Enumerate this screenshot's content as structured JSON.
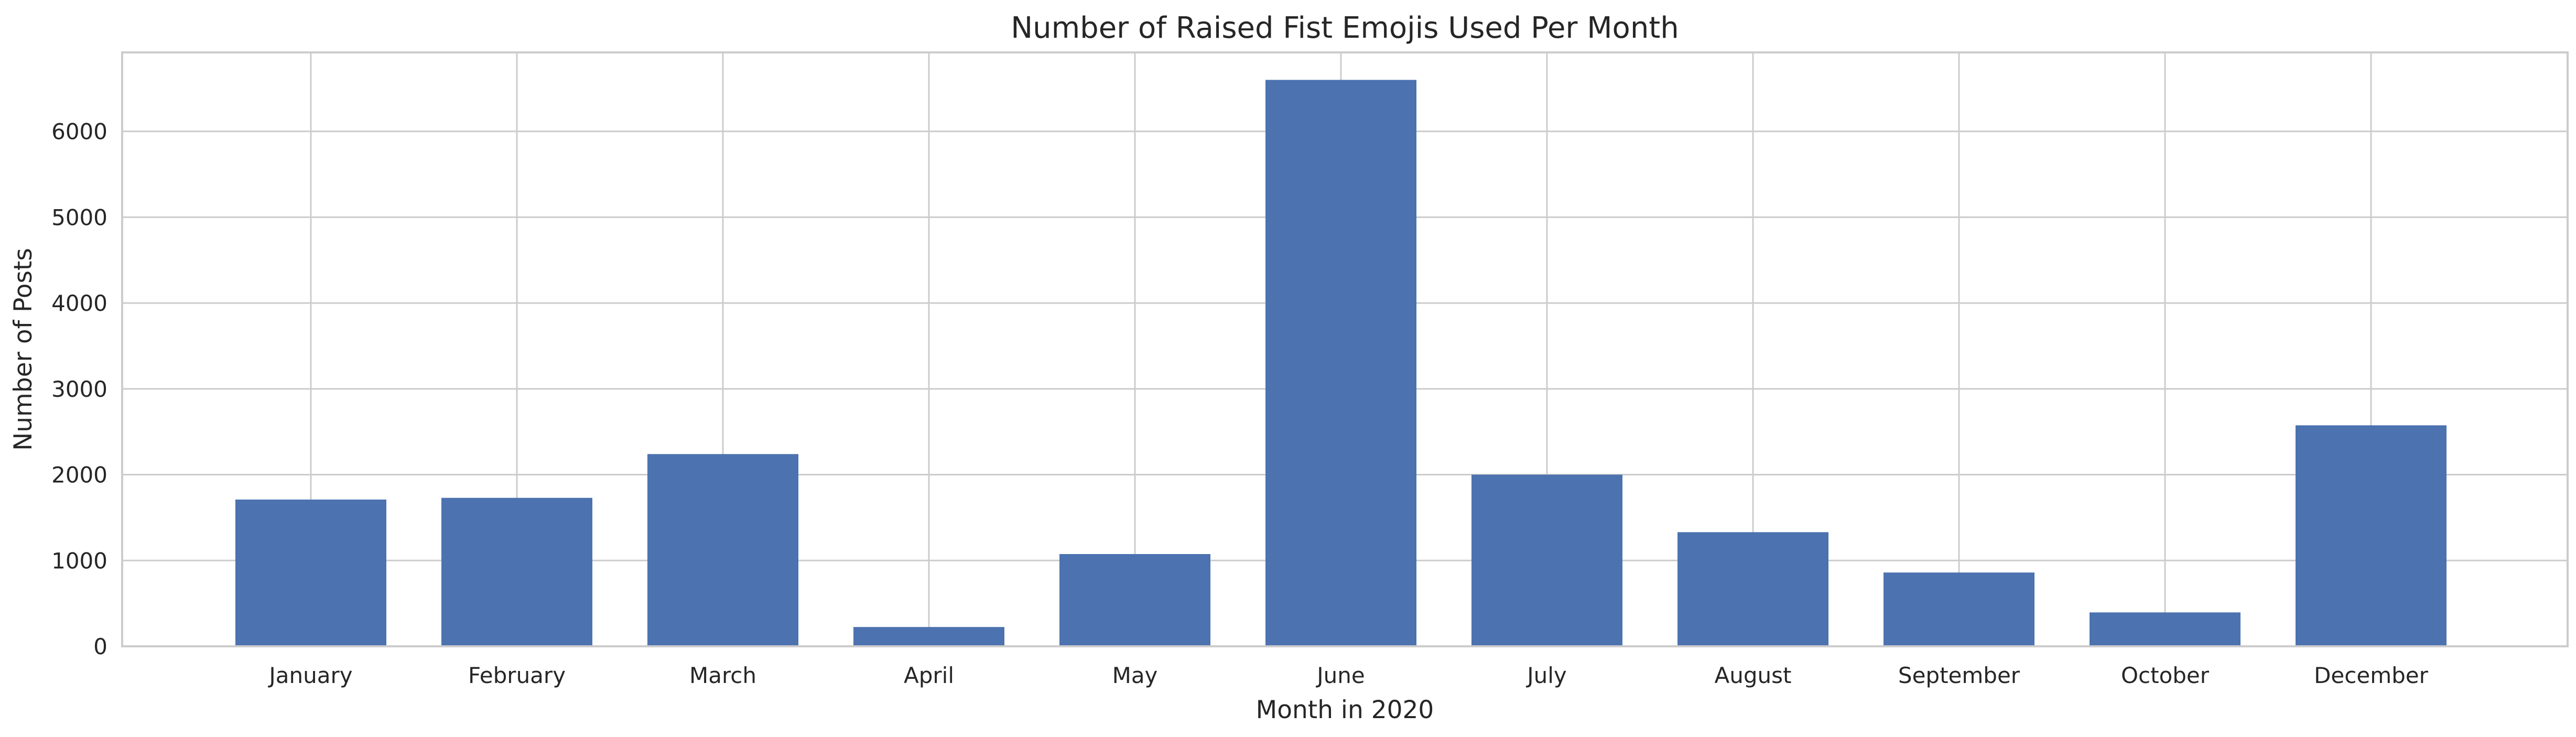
{
  "chart_data": {
    "type": "bar",
    "title": "Number of Raised Fist Emojis Used Per Month",
    "xlabel": "Month in 2020",
    "ylabel": "Number of Posts",
    "categories": [
      "January",
      "February",
      "March",
      "April",
      "May",
      "June",
      "July",
      "August",
      "September",
      "October",
      "December"
    ],
    "values": [
      1710,
      1730,
      2240,
      225,
      1075,
      6600,
      2000,
      1330,
      860,
      395,
      2575
    ],
    "ylim": [
      0,
      6920
    ],
    "yticks": [
      0,
      1000,
      2000,
      3000,
      4000,
      5000,
      6000
    ],
    "grid": true,
    "bar_color": "#4c72b0",
    "grid_color": "#cccccc",
    "axis_color": "#cccccc",
    "text_color": "#262626"
  }
}
